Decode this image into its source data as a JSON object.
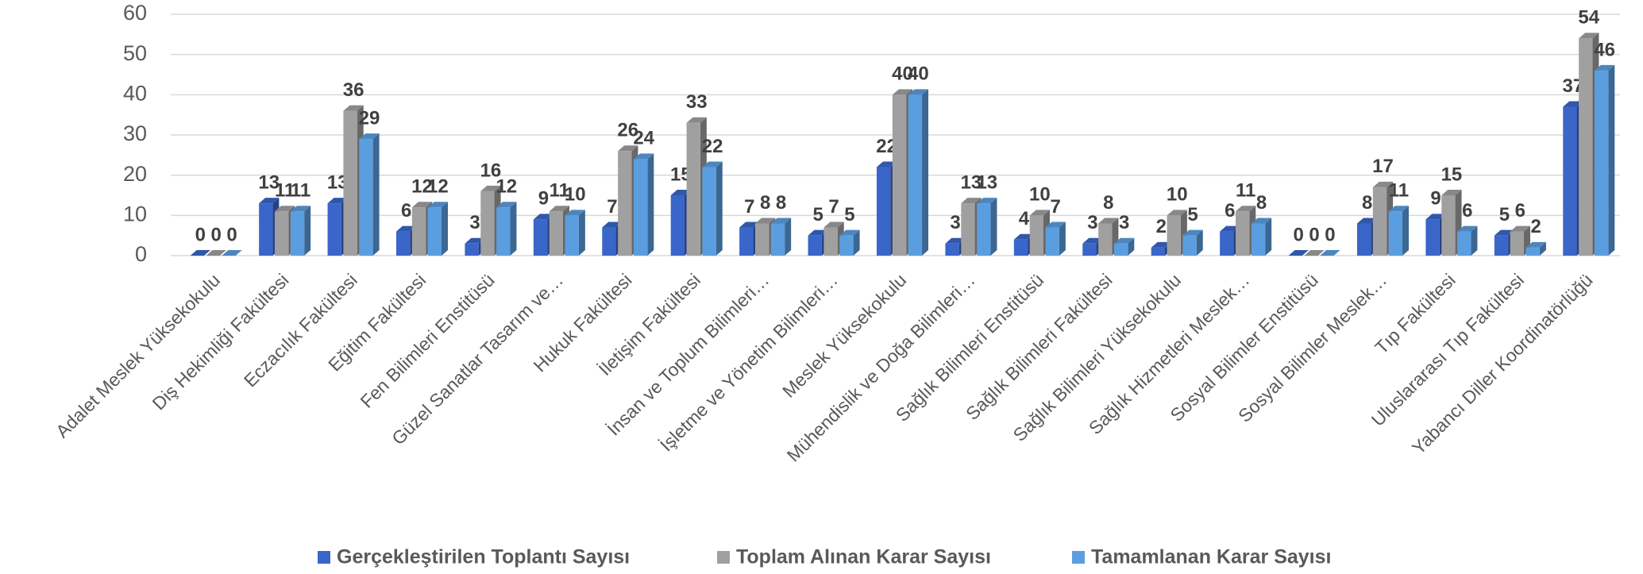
{
  "chart_data": {
    "type": "bar",
    "categories": [
      "Adalet Meslek Yüksekokulu",
      "Diş Hekimliği Fakültesi",
      "Eczacılık Fakültesi",
      "Eğitim Fakültesi",
      "Fen Bilimleri Enstitüsü",
      "Güzel Sanatlar Tasarım ve…",
      "Hukuk Fakültesi",
      "İletişim Fakültesi",
      "İnsan ve Toplum Bilimleri…",
      "İşletme ve Yönetim Bilimleri…",
      "Meslek Yüksekokulu",
      "Mühendislik ve Doğa Bilimleri…",
      "Sağlık Bilimleri Enstitüsü",
      "Sağlık Bilimleri Fakültesi",
      "Sağlık Bilimleri Yüksekokulu",
      "Sağlık Hizmetleri Meslek…",
      "Sosyal Bilimler Enstitüsü",
      "Sosyal Bilimler Meslek…",
      "Tıp Fakültesi",
      "Uluslararası Tıp Fakültesi",
      "Yabancı Diller Koordinatörlüğü"
    ],
    "series": [
      {
        "name": "Gerçekleştirilen Toplantı Sayısı",
        "color": "#3a66c9",
        "values": [
          0,
          13,
          13,
          6,
          3,
          9,
          7,
          15,
          7,
          5,
          22,
          3,
          4,
          3,
          2,
          6,
          0,
          8,
          9,
          5,
          37
        ]
      },
      {
        "name": "Toplam Alınan Karar Sayısı",
        "color": "#a0a0a0",
        "values": [
          0,
          11,
          36,
          12,
          16,
          11,
          26,
          33,
          8,
          7,
          40,
          13,
          10,
          8,
          10,
          11,
          0,
          17,
          15,
          6,
          54
        ]
      },
      {
        "name": "Tamamlanan Karar Sayısı",
        "color": "#5b9ee0",
        "values": [
          0,
          11,
          29,
          12,
          12,
          10,
          24,
          22,
          8,
          5,
          40,
          13,
          7,
          3,
          5,
          8,
          0,
          11,
          6,
          2,
          46
        ]
      }
    ],
    "ylim": [
      0,
      60
    ],
    "yticks": [
      0,
      10,
      20,
      30,
      40,
      50,
      60
    ],
    "grid": true,
    "legend": "bottom"
  }
}
